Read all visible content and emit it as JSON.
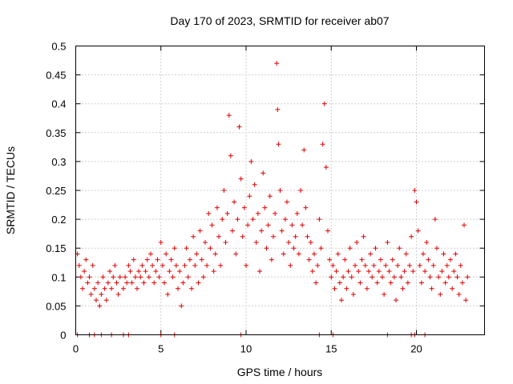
{
  "chart_data": {
    "type": "scatter",
    "title": "Day 170 of 2023, SRMTID for receiver ab07",
    "xlabel": "GPS time / hours",
    "ylabel": "SRMTID / TECUs",
    "xlim": [
      0,
      24
    ],
    "ylim": [
      0,
      0.5
    ],
    "grid": true,
    "marker": "+",
    "series_color": "#e00000",
    "xticks": [
      {
        "value": 0,
        "label": "0"
      },
      {
        "value": 5,
        "label": "5"
      },
      {
        "value": 10,
        "label": "10"
      },
      {
        "value": 15,
        "label": "15"
      },
      {
        "value": 20,
        "label": "20"
      }
    ],
    "yticks": [
      {
        "value": 0,
        "label": "0"
      },
      {
        "value": 0.05,
        "label": "0.05"
      },
      {
        "value": 0.1,
        "label": "0.1"
      },
      {
        "value": 0.15,
        "label": "0.15"
      },
      {
        "value": 0.2,
        "label": "0.2"
      },
      {
        "value": 0.25,
        "label": "0.25"
      },
      {
        "value": 0.3,
        "label": "0.3"
      },
      {
        "value": 0.35,
        "label": "0.35"
      },
      {
        "value": 0.4,
        "label": "0.4"
      },
      {
        "value": 0.45,
        "label": "0.45"
      },
      {
        "value": 0.5,
        "label": "0.5"
      }
    ],
    "series": [
      {
        "name": "SRMTID",
        "points": [
          [
            0.1,
            0.14
          ],
          [
            0.2,
            0.12
          ],
          [
            0.3,
            0.1
          ],
          [
            0.4,
            0.08
          ],
          [
            0.5,
            0.11
          ],
          [
            0.6,
            0.13
          ],
          [
            0.7,
            0.09
          ],
          [
            0.8,
            0.1
          ],
          [
            0.9,
            0.07
          ],
          [
            1.0,
            0.12
          ],
          [
            1.1,
            0.08
          ],
          [
            1.2,
            0.06
          ],
          [
            1.3,
            0.09
          ],
          [
            1.4,
            0.05
          ],
          [
            1.5,
            0.07
          ],
          [
            1.6,
            0.1
          ],
          [
            1.7,
            0.08
          ],
          [
            1.8,
            0.06
          ],
          [
            1.9,
            0.09
          ],
          [
            2.0,
            0.11
          ],
          [
            2.1,
            0.08
          ],
          [
            2.2,
            0.1
          ],
          [
            2.3,
            0.12
          ],
          [
            2.4,
            0.09
          ],
          [
            2.5,
            0.07
          ],
          [
            2.6,
            0.1
          ],
          [
            2.8,
            0.08
          ],
          [
            2.9,
            0.1
          ],
          [
            3.0,
            0.09
          ],
          [
            3.1,
            0.12
          ],
          [
            3.2,
            0.11
          ],
          [
            3.3,
            0.09
          ],
          [
            3.4,
            0.13
          ],
          [
            3.5,
            0.1
          ],
          [
            3.6,
            0.08
          ],
          [
            3.7,
            0.11
          ],
          [
            3.8,
            0.1
          ],
          [
            3.9,
            0.12
          ],
          [
            4.0,
            0.09
          ],
          [
            4.1,
            0.11
          ],
          [
            4.2,
            0.13
          ],
          [
            4.3,
            0.1
          ],
          [
            4.4,
            0.14
          ],
          [
            4.5,
            0.12
          ],
          [
            4.6,
            0.09
          ],
          [
            4.7,
            0.11
          ],
          [
            4.8,
            0.13
          ],
          [
            4.9,
            0.1
          ],
          [
            5.0,
            0.16
          ],
          [
            5.1,
            0.12
          ],
          [
            5.2,
            0.09
          ],
          [
            5.3,
            0.14
          ],
          [
            5.4,
            0.07
          ],
          [
            5.5,
            0.11
          ],
          [
            5.6,
            0.13
          ],
          [
            5.7,
            0.1
          ],
          [
            5.8,
            0.15
          ],
          [
            5.9,
            0.12
          ],
          [
            6.0,
            0.08
          ],
          [
            6.1,
            0.11
          ],
          [
            6.2,
            0.05
          ],
          [
            6.3,
            0.09
          ],
          [
            6.4,
            0.12
          ],
          [
            6.5,
            0.15
          ],
          [
            6.6,
            0.1
          ],
          [
            6.7,
            0.13
          ],
          [
            6.8,
            0.08
          ],
          [
            6.9,
            0.17
          ],
          [
            7.0,
            0.12
          ],
          [
            7.1,
            0.14
          ],
          [
            7.2,
            0.09
          ],
          [
            7.3,
            0.18
          ],
          [
            7.4,
            0.13
          ],
          [
            7.5,
            0.1
          ],
          [
            7.6,
            0.16
          ],
          [
            7.7,
            0.12
          ],
          [
            7.8,
            0.21
          ],
          [
            7.9,
            0.15
          ],
          [
            8.0,
            0.19
          ],
          [
            8.1,
            0.11
          ],
          [
            8.2,
            0.14
          ],
          [
            8.3,
            0.22
          ],
          [
            8.4,
            0.17
          ],
          [
            8.5,
            0.12
          ],
          [
            8.6,
            0.2
          ],
          [
            8.7,
            0.25
          ],
          [
            8.8,
            0.16
          ],
          [
            8.9,
            0.21
          ],
          [
            9.0,
            0.38
          ],
          [
            9.1,
            0.31
          ],
          [
            9.2,
            0.18
          ],
          [
            9.3,
            0.23
          ],
          [
            9.4,
            0.14
          ],
          [
            9.5,
            0.2
          ],
          [
            9.6,
            0.36
          ],
          [
            9.7,
            0.27
          ],
          [
            9.8,
            0.17
          ],
          [
            9.9,
            0.22
          ],
          [
            10.0,
            0.12
          ],
          [
            10.1,
            0.19
          ],
          [
            10.2,
            0.24
          ],
          [
            10.3,
            0.3
          ],
          [
            10.4,
            0.2
          ],
          [
            10.5,
            0.26
          ],
          [
            10.6,
            0.16
          ],
          [
            10.7,
            0.21
          ],
          [
            10.8,
            0.11
          ],
          [
            10.9,
            0.18
          ],
          [
            11.0,
            0.28
          ],
          [
            11.1,
            0.22
          ],
          [
            11.2,
            0.15
          ],
          [
            11.3,
            0.19
          ],
          [
            11.4,
            0.24
          ],
          [
            11.5,
            0.13
          ],
          [
            11.6,
            0.17
          ],
          [
            11.7,
            0.21
          ],
          [
            11.8,
            0.47
          ],
          [
            11.85,
            0.39
          ],
          [
            11.9,
            0.33
          ],
          [
            12.0,
            0.25
          ],
          [
            12.1,
            0.18
          ],
          [
            12.2,
            0.14
          ],
          [
            12.3,
            0.2
          ],
          [
            12.4,
            0.23
          ],
          [
            12.5,
            0.16
          ],
          [
            12.6,
            0.12
          ],
          [
            12.7,
            0.19
          ],
          [
            12.8,
            0.15
          ],
          [
            12.9,
            0.17
          ],
          [
            13.0,
            0.21
          ],
          [
            13.1,
            0.14
          ],
          [
            13.2,
            0.25
          ],
          [
            13.3,
            0.19
          ],
          [
            13.4,
            0.32
          ],
          [
            13.5,
            0.22
          ],
          [
            13.6,
            0.17
          ],
          [
            13.7,
            0.13
          ],
          [
            13.8,
            0.16
          ],
          [
            13.9,
            0.11
          ],
          [
            14.0,
            0.14
          ],
          [
            14.1,
            0.09
          ],
          [
            14.2,
            0.12
          ],
          [
            14.3,
            0.2
          ],
          [
            14.4,
            0.15
          ],
          [
            14.5,
            0.33
          ],
          [
            14.6,
            0.4
          ],
          [
            14.7,
            0.29
          ],
          [
            14.8,
            0.18
          ],
          [
            14.9,
            0.13
          ],
          [
            15.0,
            0.1
          ],
          [
            15.1,
            0.12
          ],
          [
            15.2,
            0.08
          ],
          [
            15.3,
            0.11
          ],
          [
            15.4,
            0.14
          ],
          [
            15.5,
            0.09
          ],
          [
            15.6,
            0.06
          ],
          [
            15.7,
            0.1
          ],
          [
            15.8,
            0.13
          ],
          [
            15.9,
            0.08
          ],
          [
            16.0,
            0.11
          ],
          [
            16.1,
            0.15
          ],
          [
            16.2,
            0.1
          ],
          [
            16.3,
            0.07
          ],
          [
            16.4,
            0.12
          ],
          [
            16.5,
            0.16
          ],
          [
            16.6,
            0.11
          ],
          [
            16.7,
            0.09
          ],
          [
            16.8,
            0.13
          ],
          [
            16.9,
            0.17
          ],
          [
            17.0,
            0.12
          ],
          [
            17.1,
            0.08
          ],
          [
            17.2,
            0.11
          ],
          [
            17.3,
            0.14
          ],
          [
            17.4,
            0.1
          ],
          [
            17.5,
            0.12
          ],
          [
            17.6,
            0.15
          ],
          [
            17.7,
            0.09
          ],
          [
            17.8,
            0.11
          ],
          [
            17.9,
            0.13
          ],
          [
            18.0,
            0.1
          ],
          [
            18.1,
            0.07
          ],
          [
            18.2,
            0.12
          ],
          [
            18.3,
            0.16
          ],
          [
            18.4,
            0.11
          ],
          [
            18.5,
            0.09
          ],
          [
            18.6,
            0.13
          ],
          [
            18.7,
            0.1
          ],
          [
            18.8,
            0.06
          ],
          [
            18.9,
            0.12
          ],
          [
            19.0,
            0.15
          ],
          [
            19.1,
            0.1
          ],
          [
            19.2,
            0.08
          ],
          [
            19.3,
            0.11
          ],
          [
            19.4,
            0.14
          ],
          [
            19.5,
            0.09
          ],
          [
            19.6,
            0.12
          ],
          [
            19.7,
            0.17
          ],
          [
            19.8,
            0.11
          ],
          [
            19.9,
            0.25
          ],
          [
            20.0,
            0.23
          ],
          [
            20.1,
            0.18
          ],
          [
            20.2,
            0.12
          ],
          [
            20.3,
            0.09
          ],
          [
            20.4,
            0.14
          ],
          [
            20.5,
            0.11
          ],
          [
            20.6,
            0.16
          ],
          [
            20.7,
            0.13
          ],
          [
            20.8,
            0.1
          ],
          [
            20.9,
            0.08
          ],
          [
            21.0,
            0.12
          ],
          [
            21.1,
            0.2
          ],
          [
            21.2,
            0.15
          ],
          [
            21.3,
            0.1
          ],
          [
            21.4,
            0.07
          ],
          [
            21.5,
            0.11
          ],
          [
            21.6,
            0.14
          ],
          [
            21.7,
            0.09
          ],
          [
            21.8,
            0.12
          ],
          [
            21.9,
            0.1
          ],
          [
            22.0,
            0.13
          ],
          [
            22.1,
            0.08
          ],
          [
            22.2,
            0.11
          ],
          [
            22.3,
            0.14
          ],
          [
            22.4,
            0.1
          ],
          [
            22.5,
            0.07
          ],
          [
            22.6,
            0.12
          ],
          [
            22.7,
            0.09
          ],
          [
            22.8,
            0.19
          ],
          [
            22.9,
            0.06
          ],
          [
            23.0,
            0.1
          ],
          [
            0.1,
            0.0
          ],
          [
            0.8,
            0.0
          ],
          [
            1.1,
            0.0
          ],
          [
            1.5,
            0.0
          ],
          [
            2.1,
            0.0
          ],
          [
            2.8,
            0.0
          ],
          [
            3.1,
            0.0
          ],
          [
            5.0,
            0.0
          ],
          [
            5.8,
            0.0
          ],
          [
            9.7,
            0.0
          ],
          [
            14.3,
            0.0
          ],
          [
            15.1,
            0.0
          ],
          [
            18.3,
            0.0
          ],
          [
            19.7,
            0.0
          ],
          [
            19.9,
            0.0
          ],
          [
            20.5,
            0.0
          ]
        ]
      }
    ]
  }
}
